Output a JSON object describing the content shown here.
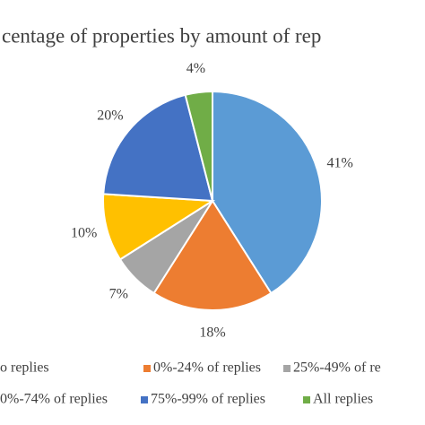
{
  "chart_data": {
    "type": "pie",
    "title": "centage of properties by amount of rep",
    "categories": [
      "o replies",
      "0%-24% of replies",
      "25%-49% of re",
      "0%-74% of replies",
      "75%-99% of replies",
      "All replies"
    ],
    "values": [
      41,
      18,
      7,
      10,
      20,
      4
    ],
    "value_labels": [
      "41%",
      "18%",
      "7%",
      "10%",
      "20%",
      "4%"
    ],
    "colors": [
      "#5b9bd5",
      "#ed7d31",
      "#a5a5a5",
      "#ffc000",
      "#4472c4",
      "#70ad47"
    ]
  }
}
